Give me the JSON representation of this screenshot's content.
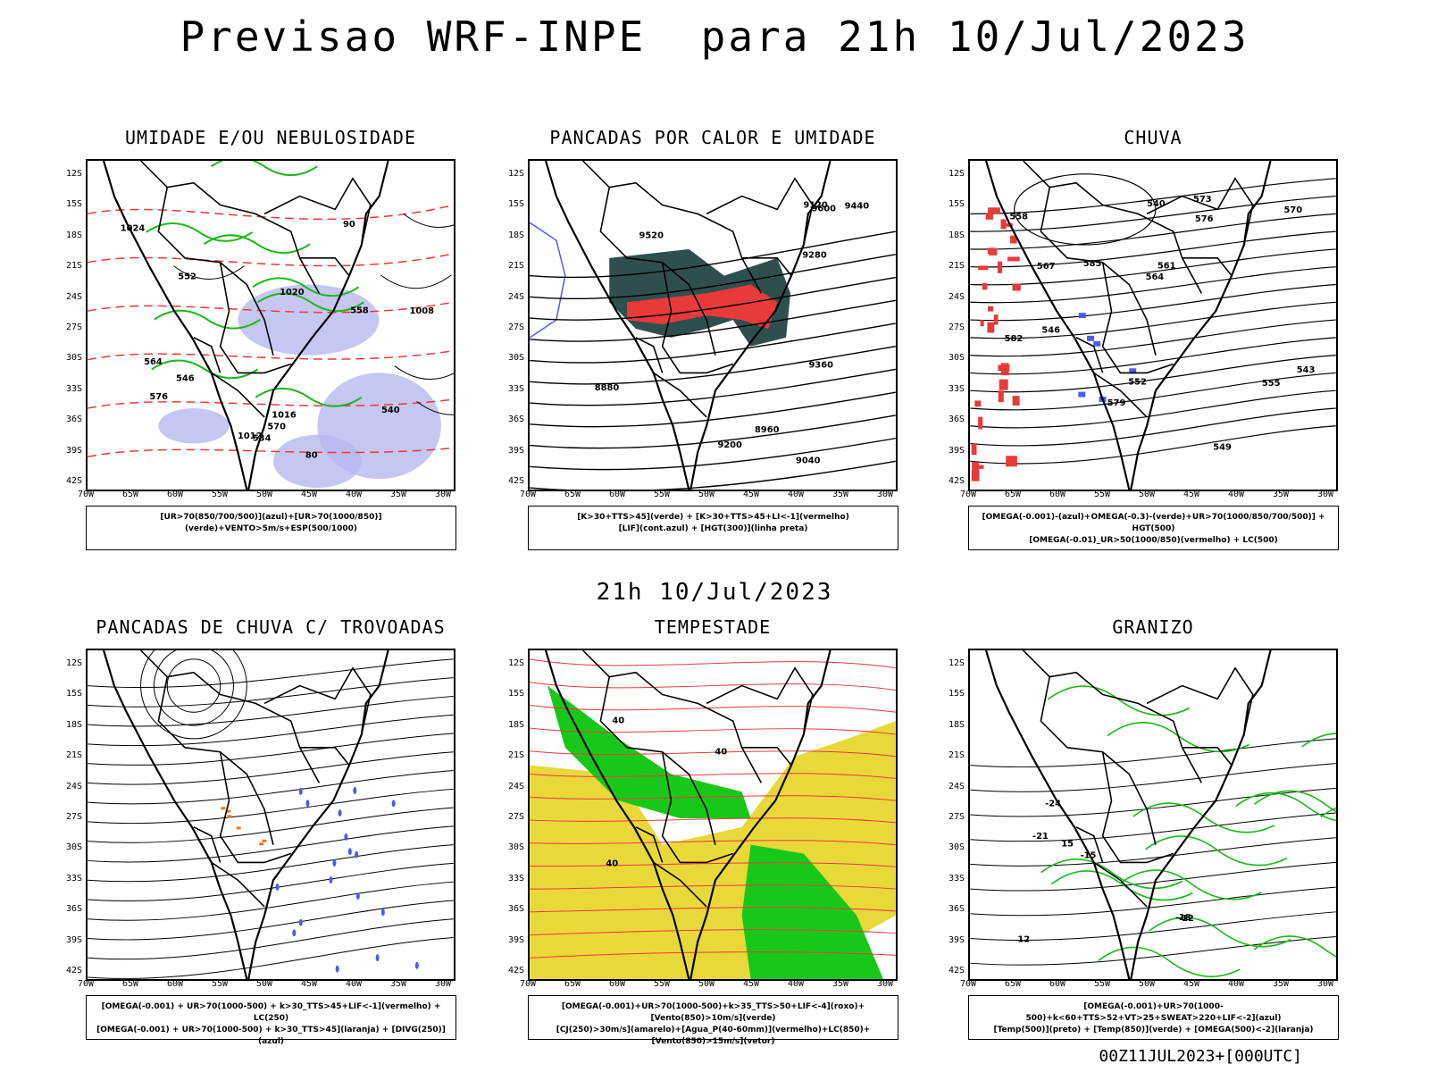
{
  "title": "Previsao WRF-INPE  para 21h 10/Jul/2023",
  "subtitle": "21h 10/Jul/2023",
  "footer": "00Z11JUL2023+[000UTC]",
  "lat_labels": [
    "12S",
    "15S",
    "18S",
    "21S",
    "24S",
    "27S",
    "30S",
    "33S",
    "36S",
    "39S",
    "42S"
  ],
  "lon_labels": [
    "70W",
    "65W",
    "60W",
    "55W",
    "50W",
    "45W",
    "40W",
    "35W",
    "30W"
  ],
  "colors": {
    "blue": "#4a5cf0",
    "green": "#18b818",
    "red": "#e83a3a",
    "teal": "#2f4f4f",
    "yellow": "#e8d83a",
    "lightblue": "#b8b8f0",
    "orange": "#e87a1a"
  },
  "panels": [
    {
      "title": "UMIDADE E/OU NEBULOSIDADE",
      "legend": [
        "[UR>70(850/700/500)](azul)+[UR>70(1000/850)](verde)+VENTO>5m/s+ESP(500/1000)"
      ],
      "labels": [
        "1012",
        "1016",
        "1020",
        "1024",
        "1008",
        "576",
        "570",
        "564",
        "558",
        "552",
        "546",
        "540",
        "534",
        "80",
        "90"
      ]
    },
    {
      "title": "PANCADAS POR CALOR E UMIDADE",
      "legend": [
        "[K>30+TTS>45](verde)  +  [K>30+TTS>45+LI<-1](vermelho)",
        "[LIF](cont.azul)  +  [HGT(300)](linha preta)"
      ],
      "labels": [
        "9600",
        "9520",
        "9440",
        "9360",
        "9280",
        "9200",
        "9120",
        "9040",
        "8960",
        "8880"
      ]
    },
    {
      "title": "CHUVA",
      "legend": [
        "[OMEGA(-0.001)-(azul)+OMEGA(-0.3)-(verde)+UR>70(1000/850/700/500)]  +  HGT(500)",
        "[OMEGA(-0.01)_UR>50(1000/850)(vermelho)  +  LC(500)"
      ],
      "labels": [
        "585",
        "582",
        "579",
        "576",
        "573",
        "570",
        "567",
        "564",
        "561",
        "558",
        "555",
        "552",
        "549",
        "546",
        "543",
        "540"
      ]
    },
    {
      "title": "PANCADAS DE CHUVA C/ TROVOADAS",
      "legend": [
        "[OMEGA(-0.001)  +  UR>70(1000-500)  +  k>30_TTS>45+LIF<-1](vermelho)  +  LC(250)",
        "[OMEGA(-0.001)  +  UR>70(1000-500)  +  k>30_TTS>45](laranja)  +  [DIVG(250)](azul)"
      ],
      "labels": []
    },
    {
      "title": "TEMPESTADE",
      "legend": [
        "[OMEGA(-0.001)+UR>70(1000-500)+k>35_TTS>50+LIF<-4](roxo)+[Vento(850)>10m/s](verde)",
        "[CJ(250)>30m/s](amarelo)+[Agua_P(40-60mm)](vermelho)+LC(850)+[Vento(850)>15m/s](vetor)"
      ],
      "labels": [
        "40",
        "40",
        "40"
      ]
    },
    {
      "title": "GRANIZO",
      "legend": [
        "[OMEGA(-0.001)+UR>70(1000-500)+k<60+TTS>52+VT>25+SWEAT>220+LIF<-2](azul)",
        "[Temp(500)](preto)  +  [Temp(850)](verde)  +  [OMEGA(500)<-2](laranja)"
      ],
      "labels": [
        "-12",
        "-15",
        "-18",
        "-21",
        "-24",
        "15",
        "12"
      ]
    }
  ]
}
